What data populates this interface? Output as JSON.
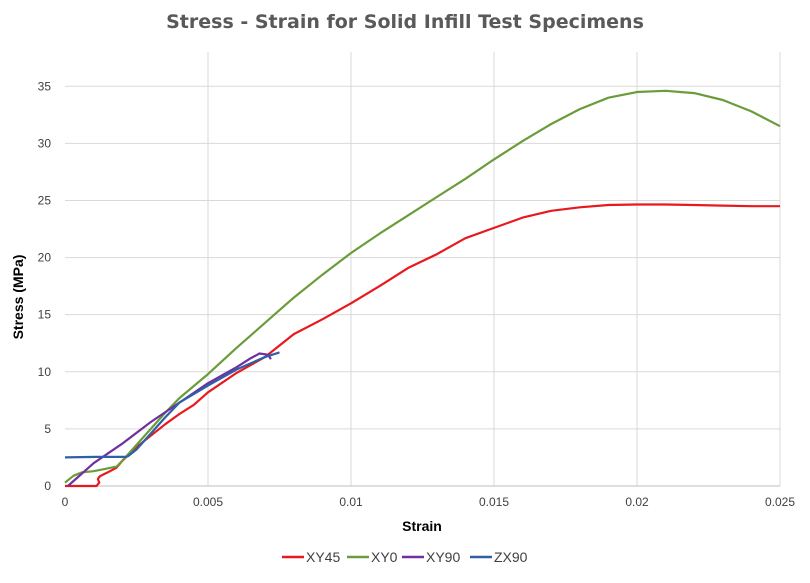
{
  "chart_data": {
    "type": "line",
    "title": "Stress - Strain for Solid Infill Test Specimens",
    "xlabel": "Strain",
    "ylabel": "Stress (MPa)",
    "xlim": [
      0,
      0.025
    ],
    "ylim": [
      0,
      38
    ],
    "xticks": [
      0,
      0.005,
      0.01,
      0.015,
      0.02,
      0.025
    ],
    "xtick_labels": [
      "0",
      "0.005",
      "0.01",
      "0.015",
      "0.02",
      "0.025"
    ],
    "yticks": [
      0,
      5,
      10,
      15,
      20,
      25,
      30,
      35
    ],
    "ytick_labels": [
      "0",
      "5",
      "10",
      "15",
      "20",
      "25",
      "30",
      "35"
    ],
    "grid": true,
    "legend_position": "bottom",
    "series": [
      {
        "name": "XY45",
        "color": "#e8191e",
        "points": [
          [
            0,
            0
          ],
          [
            0.0011,
            0
          ],
          [
            0.0012,
            0.3
          ],
          [
            0.00115,
            0.6
          ],
          [
            0.0012,
            0.8
          ],
          [
            0.00125,
            0.9
          ],
          [
            0.0015,
            1.2
          ],
          [
            0.0018,
            1.6
          ],
          [
            0.002,
            2.2
          ],
          [
            0.0025,
            3.4
          ],
          [
            0.003,
            4.4
          ],
          [
            0.0035,
            5.4
          ],
          [
            0.004,
            6.3
          ],
          [
            0.0045,
            7.1
          ],
          [
            0.005,
            8.2
          ],
          [
            0.006,
            9.9
          ],
          [
            0.007,
            11.3
          ],
          [
            0.008,
            13.3
          ],
          [
            0.009,
            14.6
          ],
          [
            0.01,
            16.0
          ],
          [
            0.011,
            17.5
          ],
          [
            0.012,
            19.1
          ],
          [
            0.013,
            20.3
          ],
          [
            0.014,
            21.7
          ],
          [
            0.015,
            22.6
          ],
          [
            0.016,
            23.5
          ],
          [
            0.017,
            24.1
          ],
          [
            0.018,
            24.4
          ],
          [
            0.019,
            24.6
          ],
          [
            0.02,
            24.65
          ],
          [
            0.021,
            24.65
          ],
          [
            0.022,
            24.6
          ],
          [
            0.023,
            24.55
          ],
          [
            0.024,
            24.5
          ],
          [
            0.025,
            24.5
          ]
        ]
      },
      {
        "name": "XY0",
        "color": "#6a9c3a",
        "points": [
          [
            0,
            0.3
          ],
          [
            0.0003,
            0.9
          ],
          [
            0.0006,
            1.2
          ],
          [
            0.001,
            1.3
          ],
          [
            0.0014,
            1.5
          ],
          [
            0.0018,
            1.7
          ],
          [
            0.002,
            2.2
          ],
          [
            0.0025,
            3.6
          ],
          [
            0.003,
            5.0
          ],
          [
            0.0035,
            6.4
          ],
          [
            0.004,
            7.7
          ],
          [
            0.005,
            9.8
          ],
          [
            0.006,
            12.1
          ],
          [
            0.007,
            14.3
          ],
          [
            0.008,
            16.5
          ],
          [
            0.009,
            18.5
          ],
          [
            0.01,
            20.4
          ],
          [
            0.011,
            22.1
          ],
          [
            0.012,
            23.7
          ],
          [
            0.013,
            25.3
          ],
          [
            0.014,
            26.9
          ],
          [
            0.015,
            28.6
          ],
          [
            0.016,
            30.2
          ],
          [
            0.017,
            31.7
          ],
          [
            0.018,
            33.0
          ],
          [
            0.019,
            34.0
          ],
          [
            0.02,
            34.5
          ],
          [
            0.021,
            34.6
          ],
          [
            0.022,
            34.4
          ],
          [
            0.023,
            33.8
          ],
          [
            0.024,
            32.8
          ],
          [
            0.025,
            31.5
          ]
        ]
      },
      {
        "name": "XY90",
        "color": "#7030a0",
        "points": [
          [
            0.0001,
            0
          ],
          [
            0.001,
            2.0
          ],
          [
            0.002,
            3.7
          ],
          [
            0.003,
            5.6
          ],
          [
            0.004,
            7.3
          ],
          [
            0.005,
            9.0
          ],
          [
            0.006,
            10.4
          ],
          [
            0.0065,
            11.2
          ],
          [
            0.0068,
            11.6
          ],
          [
            0.0071,
            11.5
          ],
          [
            0.0072,
            11.1
          ]
        ]
      },
      {
        "name": "ZX90",
        "color": "#2e5fa8",
        "points": [
          [
            0,
            2.5
          ],
          [
            0.0011,
            2.55
          ],
          [
            0.0021,
            2.55
          ],
          [
            0.0022,
            2.6
          ],
          [
            0.0025,
            3.2
          ],
          [
            0.003,
            4.6
          ],
          [
            0.0035,
            6.0
          ],
          [
            0.004,
            7.3
          ],
          [
            0.005,
            8.8
          ],
          [
            0.006,
            10.2
          ],
          [
            0.007,
            11.3
          ],
          [
            0.0075,
            11.7
          ]
        ]
      }
    ]
  }
}
